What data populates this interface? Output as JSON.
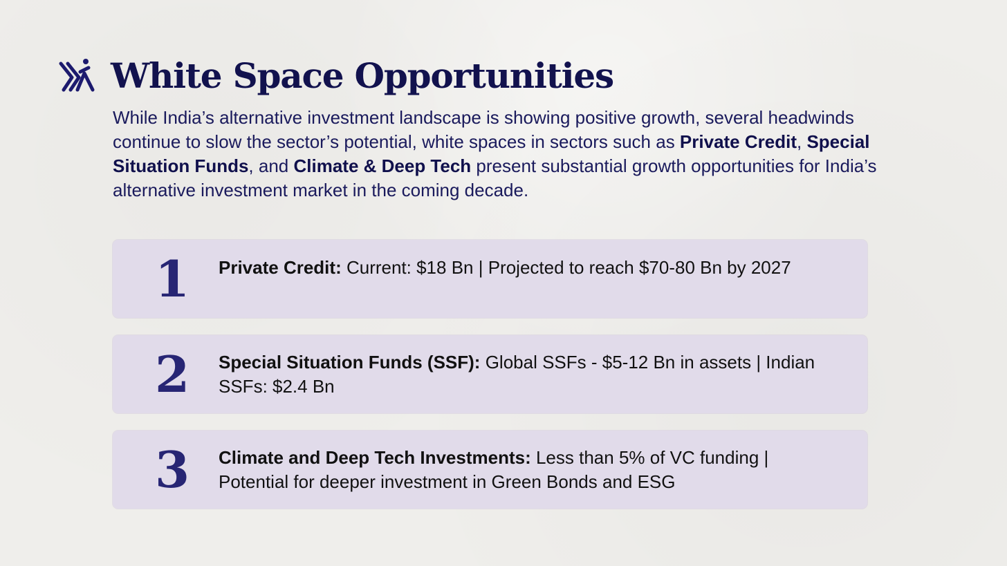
{
  "header": {
    "title": "White Space Opportunities",
    "logo_icon": "figure-logo-icon"
  },
  "intro": {
    "part1": "While India’s alternative investment landscape is showing positive growth, several headwinds continue to slow the sector’s potential, white spaces in sectors such as ",
    "bold1": "Private Credit",
    "sep1": ", ",
    "bold2": "Special Situation Funds",
    "sep2": ", and ",
    "bold3": "Climate & Deep Tech",
    "part2": " present substantial growth opportunities for India’s alternative investment market in the coming decade."
  },
  "cards": [
    {
      "number": "1",
      "label": "Private Credit:",
      "text": " Current: $18 Bn  |  Projected to reach $70-80 Bn by 2027"
    },
    {
      "number": "2",
      "label": "Special Situation Funds (SSF):",
      "text": " Global SSFs - $5-12 Bn in assets | Indian SSFs: $2.4 Bn"
    },
    {
      "number": "3",
      "label": "Climate and Deep Tech Investments:",
      "text": " Less than 5% of VC funding | Potential for deeper investment in Green Bonds and ESG"
    }
  ],
  "colors": {
    "background": "#efeeeb",
    "title": "#12124e",
    "card": "#e1dbea",
    "number": "#272574"
  }
}
